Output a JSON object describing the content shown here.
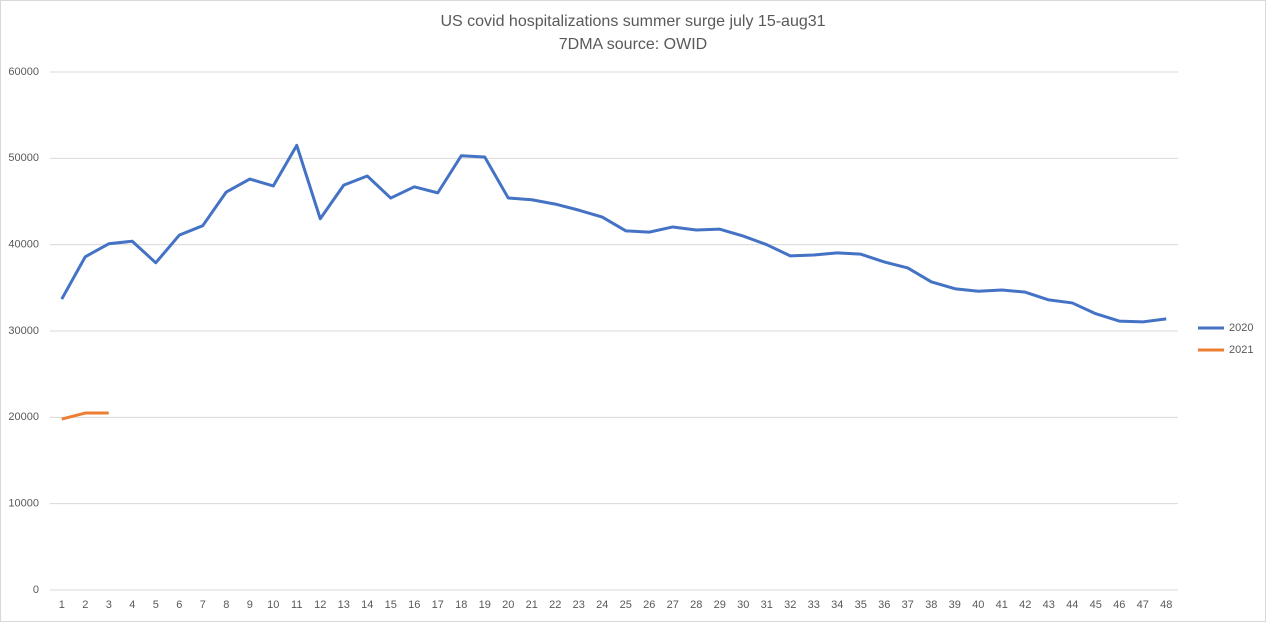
{
  "chart_data": {
    "type": "line",
    "title": "US covid hospitalizations summer surge july 15-aug31",
    "subtitle": "7DMA source: OWID",
    "categories": [
      "1",
      "2",
      "3",
      "4",
      "5",
      "6",
      "7",
      "8",
      "9",
      "10",
      "11",
      "12",
      "13",
      "14",
      "15",
      "16",
      "17",
      "18",
      "19",
      "20",
      "21",
      "22",
      "23",
      "24",
      "25",
      "26",
      "27",
      "28",
      "29",
      "30",
      "31",
      "32",
      "33",
      "34",
      "35",
      "36",
      "37",
      "38",
      "39",
      "40",
      "41",
      "42",
      "43",
      "44",
      "45",
      "46",
      "47",
      "48"
    ],
    "series": [
      {
        "name": "2020",
        "color": "#4472c4",
        "values": [
          33700,
          38600,
          40100,
          40400,
          37900,
          41100,
          42200,
          46100,
          47600,
          46800,
          51500,
          43000,
          46900,
          47950,
          45400,
          46700,
          46000,
          50300,
          50150,
          45400,
          45200,
          44700,
          44000,
          43200,
          41600,
          41450,
          42050,
          41700,
          41800,
          41000,
          40000,
          38700,
          38800,
          39050,
          38900,
          38000,
          37300,
          35700,
          34900,
          34600,
          34750,
          34500,
          33600,
          33250,
          32000,
          31150,
          31050,
          31400
        ]
      },
      {
        "name": "2021",
        "color": "#ed7d31",
        "values": [
          19800,
          20500,
          20500,
          null,
          null,
          null,
          null,
          null,
          null,
          null,
          null,
          null,
          null,
          null,
          null,
          null,
          null,
          null,
          null,
          null,
          null,
          null,
          null,
          null,
          null,
          null,
          null,
          null,
          null,
          null,
          null,
          null,
          null,
          null,
          null,
          null,
          null,
          null,
          null,
          null,
          null,
          null,
          null,
          null,
          null,
          null,
          null,
          null
        ]
      }
    ],
    "ylim": [
      0,
      60000
    ],
    "yticks": [
      0,
      10000,
      20000,
      30000,
      40000,
      50000,
      60000
    ],
    "grid": true,
    "legend": "right"
  }
}
